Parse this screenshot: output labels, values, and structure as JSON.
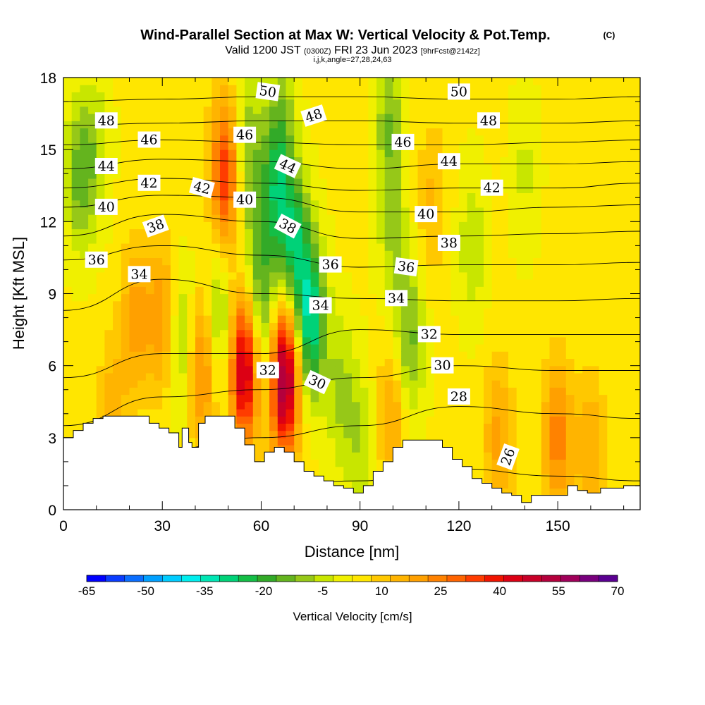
{
  "header": {
    "title": "Wind-Parallel Section at Max W: Vertical Velocity & Pot.Temp.",
    "copyright": "(C)",
    "valid_prefix": "Valid 1200 JST",
    "valid_utc": "(0300Z)",
    "valid_date": "FRI 23 Jun 2023",
    "forecast": "[9hrFcst@2142z]",
    "indices": "i,j,k,angle=27,28,24,63"
  },
  "chart_data": {
    "type": "heatmap",
    "xlabel": "Distance [nm]",
    "ylabel": "Height [Kft MSL]",
    "xlim": [
      0,
      175
    ],
    "ylim": [
      0,
      18
    ],
    "x_ticks": [
      "0",
      "30",
      "60",
      "90",
      "120",
      "150"
    ],
    "y_ticks": [
      "0",
      "3",
      "6",
      "9",
      "12",
      "15",
      "18"
    ],
    "colorbar": {
      "label": "Vertical Velocity [cm/s]",
      "tick_labels": [
        "-65",
        "-50",
        "-35",
        "-20",
        "-5",
        "10",
        "25",
        "40",
        "55",
        "70"
      ],
      "min": -65,
      "max": 70,
      "step": 5,
      "colors": [
        "#0000ff",
        "#0a3cff",
        "#0a6eff",
        "#00a0ff",
        "#00ccff",
        "#00eeee",
        "#00e6b4",
        "#00d278",
        "#14be46",
        "#32aa28",
        "#64b41e",
        "#96c818",
        "#c8e600",
        "#f0f000",
        "#ffe600",
        "#ffc800",
        "#ffb400",
        "#ffa000",
        "#ff8200",
        "#ff6400",
        "#ff3c00",
        "#f01400",
        "#dc0014",
        "#c80028",
        "#b4003c",
        "#a0005a",
        "#78007d",
        "#5a0091"
      ]
    },
    "terrain_profile": {
      "x": [
        0,
        3,
        3,
        6,
        6,
        9,
        9,
        12,
        12,
        26,
        26,
        29,
        29,
        32,
        32,
        35,
        35,
        36,
        36,
        38,
        38,
        39,
        39,
        41,
        41,
        43,
        43,
        52,
        52,
        55,
        55,
        58,
        58,
        61,
        61,
        64,
        64,
        67,
        67,
        70,
        70,
        73,
        73,
        76,
        76,
        79,
        79,
        82,
        82,
        85,
        85,
        88,
        88,
        91,
        91,
        94,
        94,
        97,
        97,
        100,
        100,
        103,
        103,
        115,
        115,
        118,
        118,
        121,
        121,
        124,
        124,
        127,
        127,
        130,
        130,
        133,
        133,
        136,
        136,
        139,
        139,
        142,
        142,
        153,
        153,
        156,
        156,
        159,
        159,
        163,
        163,
        170,
        170,
        175
      ],
      "y": [
        3.0,
        3.0,
        3.3,
        3.3,
        3.6,
        3.6,
        3.8,
        3.8,
        3.9,
        3.9,
        3.6,
        3.6,
        3.4,
        3.4,
        3.2,
        3.2,
        2.6,
        2.6,
        3.4,
        3.4,
        2.8,
        2.8,
        2.6,
        2.6,
        3.6,
        3.6,
        3.9,
        3.9,
        3.4,
        3.4,
        2.7,
        2.7,
        2.0,
        2.0,
        2.4,
        2.4,
        2.6,
        2.6,
        2.4,
        2.4,
        2.0,
        2.0,
        1.6,
        1.6,
        1.4,
        1.4,
        1.2,
        1.2,
        1.0,
        1.0,
        0.9,
        0.9,
        0.7,
        0.7,
        1.0,
        1.0,
        1.6,
        1.6,
        2.0,
        2.0,
        2.6,
        2.6,
        2.9,
        2.9,
        2.6,
        2.6,
        2.1,
        2.1,
        1.8,
        1.8,
        1.3,
        1.3,
        1.1,
        1.1,
        0.9,
        0.9,
        0.7,
        0.7,
        0.6,
        0.6,
        0.3,
        0.3,
        0.6,
        0.6,
        1.0,
        1.0,
        0.8,
        0.8,
        0.7,
        0.7,
        0.9,
        0.9,
        1.0,
        1.0
      ]
    },
    "w_features": [
      {
        "x": 5,
        "y": 14,
        "w": -18
      },
      {
        "x": 10,
        "y": 15,
        "w": -9
      },
      {
        "x": 22,
        "y": 8,
        "w": 16
      },
      {
        "x": 30,
        "y": 8,
        "w": 18
      },
      {
        "x": 36,
        "y": 7,
        "w": -15
      },
      {
        "x": 42,
        "y": 6,
        "w": 25
      },
      {
        "x": 49,
        "y": 14,
        "w": 34
      },
      {
        "x": 47,
        "y": 8,
        "w": -17
      },
      {
        "x": 56,
        "y": 15,
        "w": -16
      },
      {
        "x": 55,
        "y": 6,
        "w": 50
      },
      {
        "x": 61,
        "y": 7.5,
        "w": -16
      },
      {
        "x": 67,
        "y": 5.5,
        "w": 58
      },
      {
        "x": 58,
        "y": 9.5,
        "w": -13
      },
      {
        "x": 64,
        "y": 13,
        "w": -22
      },
      {
        "x": 70,
        "y": 11,
        "w": -28
      },
      {
        "x": 75,
        "y": 8,
        "w": -36
      },
      {
        "x": 66,
        "y": 16,
        "w": -14
      },
      {
        "x": 84,
        "y": 5,
        "w": -12
      },
      {
        "x": 90,
        "y": 2.8,
        "w": -10
      },
      {
        "x": 99,
        "y": 16,
        "w": -16
      },
      {
        "x": 100,
        "y": 11,
        "w": -10
      },
      {
        "x": 105,
        "y": 7,
        "w": -18
      },
      {
        "x": 100,
        "y": 4,
        "w": 15
      },
      {
        "x": 112,
        "y": 13,
        "w": 10
      },
      {
        "x": 124,
        "y": 11,
        "w": -10
      },
      {
        "x": 140,
        "y": 14,
        "w": -7
      },
      {
        "x": 132,
        "y": 3,
        "w": 16
      },
      {
        "x": 150,
        "y": 3,
        "w": 22
      },
      {
        "x": 160,
        "y": 2.5,
        "w": 14
      },
      {
        "x": 15,
        "y": 4,
        "w": 12
      }
    ],
    "theta_contours": [
      {
        "label": "26",
        "x": [
          0,
          30,
          60,
          90,
          120,
          150,
          175
        ],
        "y": [
          0.7,
          0.8,
          1.0,
          1.2,
          1.7,
          1.4,
          1.2
        ]
      },
      {
        "label": "28",
        "x": [
          0,
          30,
          60,
          90,
          120,
          150,
          175
        ],
        "y": [
          1.5,
          2.5,
          3.0,
          3.5,
          4.3,
          4.0,
          3.8
        ]
      },
      {
        "label": "30",
        "x": [
          0,
          30,
          60,
          90,
          120,
          150,
          175
        ],
        "y": [
          3.5,
          4.7,
          5.0,
          5.5,
          6.0,
          5.8,
          5.8
        ]
      },
      {
        "label": "32",
        "x": [
          0,
          30,
          60,
          90,
          120,
          150,
          175
        ],
        "y": [
          5.5,
          6.5,
          6.5,
          7.5,
          7.3,
          7.3,
          7.3
        ]
      },
      {
        "label": "34",
        "x": [
          0,
          30,
          60,
          90,
          120,
          150,
          175
        ],
        "y": [
          8.3,
          9.6,
          9.0,
          8.8,
          8.7,
          8.7,
          8.8
        ]
      },
      {
        "label": "36",
        "x": [
          0,
          30,
          60,
          90,
          120,
          150,
          175
        ],
        "y": [
          10.4,
          11.0,
          10.6,
          10.1,
          10.2,
          10.2,
          10.3
        ]
      },
      {
        "label": "38",
        "x": [
          0,
          30,
          60,
          90,
          120,
          150,
          175
        ],
        "y": [
          11.4,
          12.3,
          12.0,
          11.3,
          11.4,
          11.5,
          11.6
        ]
      },
      {
        "label": "40",
        "x": [
          0,
          30,
          60,
          90,
          120,
          150,
          175
        ],
        "y": [
          12.6,
          13.1,
          13.0,
          12.4,
          12.4,
          12.6,
          12.7
        ]
      },
      {
        "label": "42",
        "x": [
          0,
          30,
          60,
          90,
          120,
          150,
          175
        ],
        "y": [
          13.4,
          13.8,
          13.6,
          13.3,
          13.4,
          13.4,
          13.6
        ]
      },
      {
        "label": "44",
        "x": [
          0,
          30,
          60,
          90,
          120,
          150,
          175
        ],
        "y": [
          14.2,
          14.6,
          14.5,
          14.2,
          14.4,
          14.4,
          14.5
        ]
      },
      {
        "label": "46",
        "x": [
          0,
          30,
          60,
          90,
          120,
          150,
          175
        ],
        "y": [
          15.2,
          15.4,
          15.3,
          15.2,
          15.2,
          15.3,
          15.4
        ]
      },
      {
        "label": "48",
        "x": [
          0,
          30,
          60,
          90,
          120,
          150,
          175
        ],
        "y": [
          16.0,
          16.1,
          16.2,
          16.2,
          16.1,
          16.1,
          16.2
        ]
      },
      {
        "label": "50",
        "x": [
          0,
          30,
          60,
          90,
          120,
          150,
          175
        ],
        "y": [
          17.0,
          17.1,
          17.2,
          17.2,
          17.1,
          17.1,
          17.2
        ]
      }
    ],
    "contour_labels": [
      {
        "text": "26",
        "x": 135,
        "y": 2.2,
        "rot": -70
      },
      {
        "text": "28",
        "x": 120,
        "y": 4.7,
        "rot": 0
      },
      {
        "text": "30",
        "x": 115,
        "y": 6.0,
        "rot": 0
      },
      {
        "text": "30",
        "x": 77,
        "y": 5.3,
        "rot": 25
      },
      {
        "text": "32",
        "x": 111,
        "y": 7.3,
        "rot": 0
      },
      {
        "text": "32",
        "x": 62,
        "y": 5.8,
        "rot": 0
      },
      {
        "text": "34",
        "x": 101,
        "y": 8.8,
        "rot": 0
      },
      {
        "text": "34",
        "x": 78,
        "y": 8.5,
        "rot": 0
      },
      {
        "text": "34",
        "x": 23,
        "y": 9.8,
        "rot": 0
      },
      {
        "text": "36",
        "x": 104,
        "y": 10.1,
        "rot": 8
      },
      {
        "text": "36",
        "x": 81,
        "y": 10.2,
        "rot": 0
      },
      {
        "text": "36",
        "x": 10,
        "y": 10.4,
        "rot": 0
      },
      {
        "text": "38",
        "x": 117,
        "y": 11.1,
        "rot": 0
      },
      {
        "text": "38",
        "x": 68,
        "y": 11.8,
        "rot": 28
      },
      {
        "text": "38",
        "x": 28,
        "y": 11.8,
        "rot": -20
      },
      {
        "text": "40",
        "x": 110,
        "y": 12.3,
        "rot": 0
      },
      {
        "text": "40",
        "x": 55,
        "y": 12.9,
        "rot": 0
      },
      {
        "text": "40",
        "x": 13,
        "y": 12.6,
        "rot": 0
      },
      {
        "text": "42",
        "x": 130,
        "y": 13.4,
        "rot": 0
      },
      {
        "text": "42",
        "x": 42,
        "y": 13.4,
        "rot": 15
      },
      {
        "text": "42",
        "x": 26,
        "y": 13.6,
        "rot": 0
      },
      {
        "text": "44",
        "x": 117,
        "y": 14.5,
        "rot": 0
      },
      {
        "text": "44",
        "x": 68,
        "y": 14.3,
        "rot": 25
      },
      {
        "text": "44",
        "x": 13,
        "y": 14.3,
        "rot": 0
      },
      {
        "text": "46",
        "x": 103,
        "y": 15.3,
        "rot": 0
      },
      {
        "text": "46",
        "x": 55,
        "y": 15.6,
        "rot": 0
      },
      {
        "text": "46",
        "x": 26,
        "y": 15.4,
        "rot": 0
      },
      {
        "text": "48",
        "x": 129,
        "y": 16.2,
        "rot": 0
      },
      {
        "text": "48",
        "x": 76,
        "y": 16.4,
        "rot": -18
      },
      {
        "text": "48",
        "x": 13,
        "y": 16.2,
        "rot": 0
      },
      {
        "text": "50",
        "x": 120,
        "y": 17.4,
        "rot": 0
      },
      {
        "text": "50",
        "x": 62,
        "y": 17.4,
        "rot": 8
      }
    ]
  }
}
